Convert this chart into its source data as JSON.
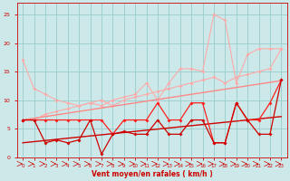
{
  "x": [
    0,
    1,
    2,
    3,
    4,
    5,
    6,
    7,
    8,
    9,
    10,
    11,
    12,
    13,
    14,
    15,
    16,
    17,
    18,
    19,
    20,
    21,
    22,
    23
  ],
  "gust_high": [
    17,
    12,
    11,
    10,
    9.5,
    9,
    9.5,
    9,
    10,
    10.5,
    11,
    13,
    10,
    13,
    15.5,
    15.5,
    15,
    25,
    24,
    13,
    18,
    19,
    19,
    19
  ],
  "gust_low": [
    6.5,
    6.5,
    7.5,
    8,
    8.5,
    9,
    9.5,
    10,
    9,
    10,
    10.5,
    11,
    11.5,
    12,
    12.5,
    13,
    13.5,
    14,
    13,
    14,
    14.5,
    15,
    15.5,
    19
  ],
  "wind_jagged1": [
    6.5,
    6.5,
    6.5,
    6.5,
    6.5,
    6.5,
    6.5,
    6.5,
    4,
    6.5,
    6.5,
    6.5,
    9.5,
    6.5,
    6.5,
    9.5,
    9.5,
    2.5,
    2.5,
    9.5,
    6.5,
    6.5,
    9.5,
    13.5
  ],
  "wind_jagged2": [
    6.5,
    6.5,
    2.5,
    3,
    2.5,
    3,
    6.5,
    0.5,
    4,
    4.5,
    4,
    4,
    6.5,
    4,
    4,
    6.5,
    6.5,
    2.5,
    2.5,
    9.5,
    6.5,
    4,
    4,
    13.5
  ],
  "trend_upper": [
    6.5,
    6.8,
    7.1,
    7.4,
    7.7,
    8.0,
    8.3,
    8.6,
    8.9,
    9.2,
    9.5,
    9.8,
    10.1,
    10.4,
    10.7,
    11.0,
    11.3,
    11.6,
    11.9,
    12.2,
    12.5,
    12.8,
    13.1,
    13.4
  ],
  "trend_lower": [
    2.5,
    2.7,
    2.9,
    3.1,
    3.3,
    3.5,
    3.7,
    3.9,
    4.1,
    4.3,
    4.5,
    4.7,
    4.9,
    5.1,
    5.3,
    5.5,
    5.7,
    5.9,
    6.1,
    6.3,
    6.5,
    6.7,
    6.9,
    7.1
  ],
  "bg_color": "#cce8e8",
  "grid_color": "#99cccc",
  "color_light_pink": "#ffaaaa",
  "color_medium_pink": "#ff8888",
  "color_red": "#ff2020",
  "color_dark_red": "#cc0000",
  "xlabel": "Vent moyen/en rafales ( km/h )",
  "ylim": [
    0,
    27
  ],
  "xlim": [
    -0.5,
    23.5
  ],
  "yticks": [
    0,
    5,
    10,
    15,
    20,
    25
  ],
  "xticks": [
    0,
    1,
    2,
    3,
    4,
    5,
    6,
    7,
    8,
    9,
    10,
    11,
    12,
    13,
    14,
    15,
    16,
    17,
    18,
    19,
    20,
    21,
    22,
    23
  ]
}
